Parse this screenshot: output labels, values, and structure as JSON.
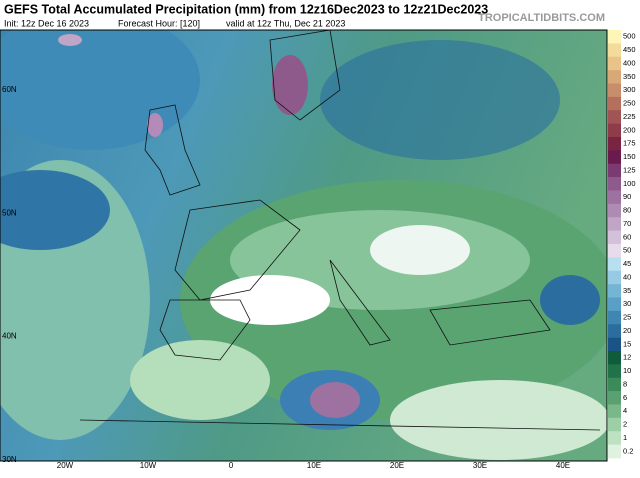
{
  "header": {
    "title": "GEFS Total Accumulated Precipitation (mm) from 12z16Dec2023 to 12z21Dec2023",
    "init": "Init: 12z Dec 16 2023",
    "forecast_hour": "Forecast Hour: [120]",
    "valid": "valid at 12z Thu, Dec 21 2023",
    "credit": "TROPICALTIDBITS.COM"
  },
  "map": {
    "lat_labels": [
      "60N",
      "50N",
      "40N",
      "30N"
    ],
    "lon_labels": [
      "20W",
      "10W",
      "0",
      "10E",
      "20E",
      "30E",
      "40E"
    ]
  },
  "colorbar": {
    "levels": [
      {
        "label": 500,
        "color": "#fef6b8"
      },
      {
        "label": 450,
        "color": "#f3dc9b"
      },
      {
        "label": 400,
        "color": "#e8c48a"
      },
      {
        "label": 350,
        "color": "#d9a878"
      },
      {
        "label": 300,
        "color": "#c88d6b"
      },
      {
        "label": 250,
        "color": "#b5705d"
      },
      {
        "label": 225,
        "color": "#a05453"
      },
      {
        "label": 200,
        "color": "#8e3b4a"
      },
      {
        "label": 175,
        "color": "#7a2444"
      },
      {
        "label": 150,
        "color": "#6b1a4e"
      },
      {
        "label": 125,
        "color": "#7c3a73"
      },
      {
        "label": 100,
        "color": "#8e5a8c"
      },
      {
        "label": 90,
        "color": "#9e72a0"
      },
      {
        "label": 80,
        "color": "#ae8bb3"
      },
      {
        "label": 70,
        "color": "#c0a5c6"
      },
      {
        "label": 60,
        "color": "#d3c0d9"
      },
      {
        "label": 50,
        "color": "#e6dcec"
      },
      {
        "label": 45,
        "color": "#b7dff0"
      },
      {
        "label": 40,
        "color": "#96cbe3"
      },
      {
        "label": 35,
        "color": "#74b5d4"
      },
      {
        "label": 30,
        "color": "#5a9fc5"
      },
      {
        "label": 25,
        "color": "#3f86b3"
      },
      {
        "label": 20,
        "color": "#2b6d9e"
      },
      {
        "label": 15,
        "color": "#1a5486"
      },
      {
        "label": 12,
        "color": "#0f5c3c"
      },
      {
        "label": 10,
        "color": "#207248"
      },
      {
        "label": 8,
        "color": "#3a8a5a"
      },
      {
        "label": 6,
        "color": "#5aa070"
      },
      {
        "label": 4,
        "color": "#7ab88a"
      },
      {
        "label": 2,
        "color": "#9ccfa5"
      },
      {
        "label": 1,
        "color": "#bde2c2"
      },
      {
        "label": 0.2,
        "color": "#dff2e0"
      }
    ]
  }
}
